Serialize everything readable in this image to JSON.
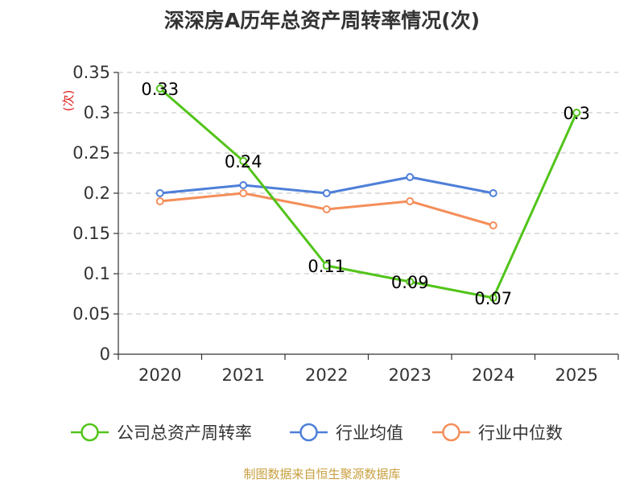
{
  "chart_data": {
    "type": "line",
    "title": "深深房A历年总资产周转率情况(次)",
    "ylabel": "(次)",
    "xlabel": "",
    "categories": [
      "2020",
      "2021",
      "2022",
      "2023",
      "2024",
      "2025"
    ],
    "ylim": [
      0,
      0.35
    ],
    "yticks": [
      "0",
      "0.05",
      "0.1",
      "0.15",
      "0.2",
      "0.25",
      "0.3",
      "0.35"
    ],
    "grid": true,
    "legend_position": "bottom",
    "series": [
      {
        "name": "公司总资产周转率",
        "color": "#52c41a",
        "values": [
          0.33,
          0.24,
          0.11,
          0.09,
          0.07,
          0.3
        ],
        "labels": [
          "0.33",
          "0.24",
          "0.11",
          "0.09",
          "0.07",
          "0.3"
        ]
      },
      {
        "name": "行业均值",
        "color": "#4e7fd8",
        "values": [
          0.2,
          0.21,
          0.2,
          0.22,
          0.2,
          null
        ]
      },
      {
        "name": "行业中位数",
        "color": "#f48e5a",
        "values": [
          0.19,
          0.2,
          0.18,
          0.19,
          0.16,
          null
        ]
      }
    ],
    "source": "制图数据来自恒生聚源数据库",
    "ylabel_color": "#e02020",
    "source_color": "#c8a040"
  }
}
